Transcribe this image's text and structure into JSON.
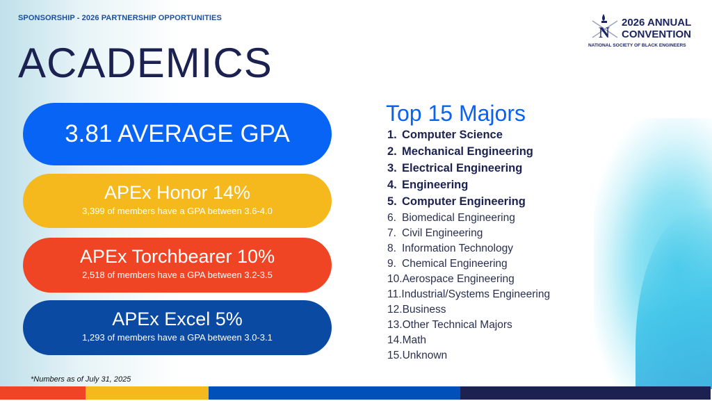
{
  "header": {
    "kicker": "SPONSORSHIP - 2026 PARTNERSHIP OPPORTUNITIES",
    "title": "ACADEMICS"
  },
  "logo": {
    "line1": "2026 ANNUAL",
    "line2": "CONVENTION",
    "line3": "NATIONAL SOCIETY OF BLACK ENGINEERS"
  },
  "stats": {
    "gpa": "3.81 AVERAGE GPA",
    "honor": {
      "title": "APEx Honor 14%",
      "detail": "3,399 of members have a GPA between 3.6-4.0"
    },
    "torchbearer": {
      "title": "APEx Torchbearer 10%",
      "detail": "2,518 of members have a GPA between 3.2-3.5"
    },
    "excel": {
      "title": "APEx Excel 5%",
      "detail": "1,293 of members have a GPA between 3.0-3.1"
    }
  },
  "majors": {
    "title": "Top 15 Majors",
    "items": [
      {
        "num": "1.",
        "label": "Computer Science"
      },
      {
        "num": "2.",
        "label": "Mechanical Engineering"
      },
      {
        "num": "3.",
        "label": "Electrical Engineering"
      },
      {
        "num": "4.",
        "label": "Engineering"
      },
      {
        "num": "5.",
        "label": "Computer Engineering"
      },
      {
        "num": "6.",
        "label": "Biomedical Engineering"
      },
      {
        "num": "7.",
        "label": "Civil Engineering"
      },
      {
        "num": "8.",
        "label": "Information Technology"
      },
      {
        "num": "9.",
        "label": "Chemical Engineering"
      },
      {
        "num": "10.",
        "label": "Aerospace Engineering"
      },
      {
        "num": "11.",
        "label": "Industrial/Systems Engineering"
      },
      {
        "num": "12.",
        "label": "Business"
      },
      {
        "num": "13.",
        "label": "Other Technical Majors"
      },
      {
        "num": "14.",
        "label": "Math"
      },
      {
        "num": "15.",
        "label": "Unknown"
      }
    ]
  },
  "footnote": "*Numbers as of July 31, 2025",
  "colors": {
    "blue": "#0864f5",
    "yellow": "#f5b81d",
    "red": "#f04524",
    "darkblue": "#0a4aa3",
    "navy": "#1b2150",
    "bar_blue": "#0050bb"
  }
}
